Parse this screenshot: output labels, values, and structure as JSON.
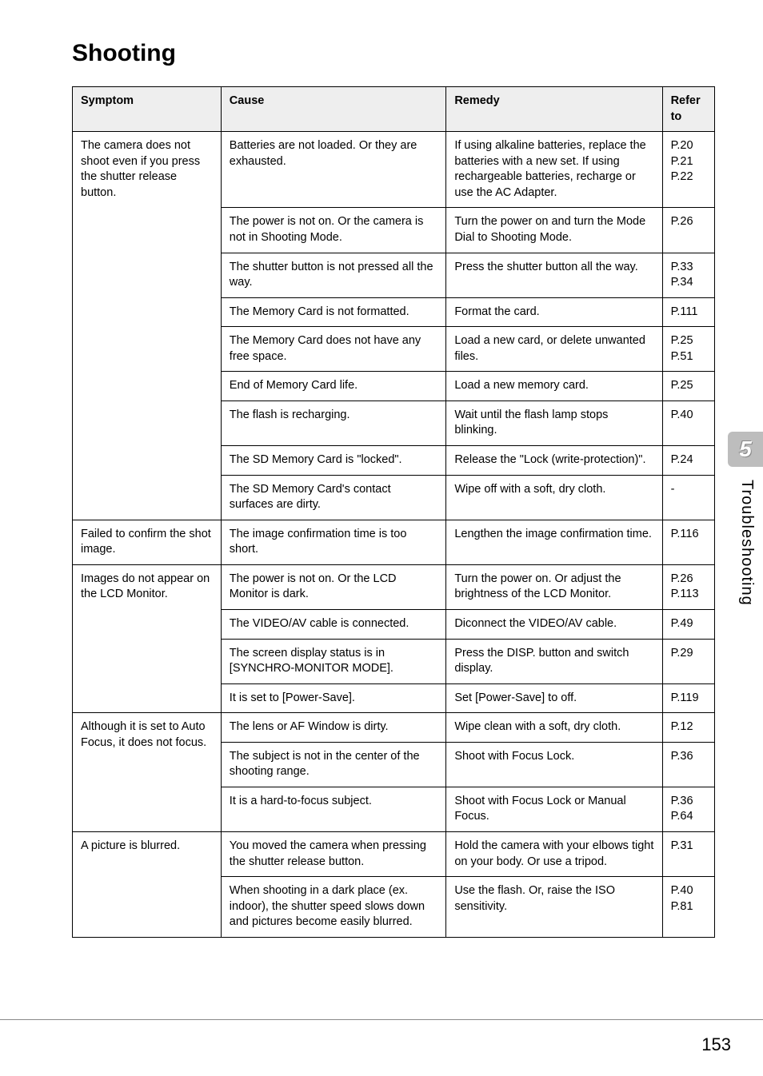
{
  "heading": "Shooting",
  "side_tab": {
    "number": "5",
    "label": "Troubleshooting"
  },
  "page_number": "153",
  "table": {
    "headers": {
      "symptom": "Symptom",
      "cause": "Cause",
      "remedy": "Remedy",
      "refer": "Refer to"
    },
    "rows": {
      "r1": {
        "symptom": "The camera does not shoot even if you press the shutter release button.",
        "cause": "Batteries are not loaded. Or they are exhausted.",
        "remedy": "If using alkaline batteries, replace the batteries with a new set. If using rechargeable batteries, recharge or use the AC Adapter.",
        "refer": "P.20\nP.21\nP.22"
      },
      "r2": {
        "cause": "The power is not on. Or the camera is not in Shooting Mode.",
        "remedy": "Turn the power on and turn the Mode Dial to Shooting Mode.",
        "refer": "P.26"
      },
      "r3": {
        "cause": "The shutter button is not pressed all the way.",
        "remedy": "Press the shutter button all the way.",
        "refer": "P.33\nP.34"
      },
      "r4": {
        "cause": "The Memory Card is not formatted.",
        "remedy": "Format the card.",
        "refer": "P.111"
      },
      "r5": {
        "cause": "The Memory Card does not have any free space.",
        "remedy": "Load a new card, or delete unwanted files.",
        "refer": "P.25\nP.51"
      },
      "r6": {
        "cause": "End of Memory Card life.",
        "remedy": "Load a new memory card.",
        "refer": "P.25"
      },
      "r7": {
        "cause": "The flash is recharging.",
        "remedy": "Wait until the flash lamp stops blinking.",
        "refer": "P.40"
      },
      "r8": {
        "cause": "The SD Memory Card is \"locked\".",
        "remedy": "Release the \"Lock (write-protection)\".",
        "refer": "P.24"
      },
      "r9": {
        "cause": "The SD Memory Card's contact surfaces are dirty.",
        "remedy": "Wipe off with a soft, dry cloth.",
        "refer": "-"
      },
      "r10": {
        "symptom": "Failed to confirm the shot image.",
        "cause": "The image confirmation time is too short.",
        "remedy": "Lengthen the image confirmation time.",
        "refer": "P.116"
      },
      "r11": {
        "symptom": "Images do not appear on the LCD Monitor.",
        "cause": "The power is not on. Or the LCD Monitor is dark.",
        "remedy": "Turn the power on. Or adjust the brightness of the LCD Monitor.",
        "refer": "P.26\nP.113"
      },
      "r12": {
        "cause": "The VIDEO/AV cable is connected.",
        "remedy": "Diconnect the VIDEO/AV cable.",
        "refer": "P.49"
      },
      "r13": {
        "cause": "The screen display status is in [SYNCHRO-MONITOR MODE].",
        "remedy": "Press the DISP. button and switch display.",
        "refer": "P.29"
      },
      "r14": {
        "cause": "It is set to [Power-Save].",
        "remedy": "Set [Power-Save] to off.",
        "refer": "P.119"
      },
      "r15": {
        "symptom": "Although it is set to Auto Focus, it does not focus.",
        "cause": "The lens or AF Window is dirty.",
        "remedy": "Wipe clean with a soft, dry cloth.",
        "refer": "P.12"
      },
      "r16": {
        "cause": "The subject is not in the center of the shooting range.",
        "remedy": "Shoot with Focus Lock.",
        "refer": "P.36"
      },
      "r17": {
        "cause": "It is a hard-to-focus subject.",
        "remedy": "Shoot with Focus Lock or Manual Focus.",
        "refer": "P.36\nP.64"
      },
      "r18": {
        "symptom": "A picture is blurred.",
        "cause": "You moved the camera when pressing the shutter release button.",
        "remedy": "Hold the camera with your elbows tight on your body. Or use a tripod.",
        "refer": "P.31"
      },
      "r19": {
        "cause": "When shooting in a dark place (ex. indoor), the shutter speed slows down and pictures become easily blurred.",
        "remedy": "Use the flash. Or, raise the ISO sensitivity.",
        "refer": "P.40\nP.81"
      }
    }
  }
}
